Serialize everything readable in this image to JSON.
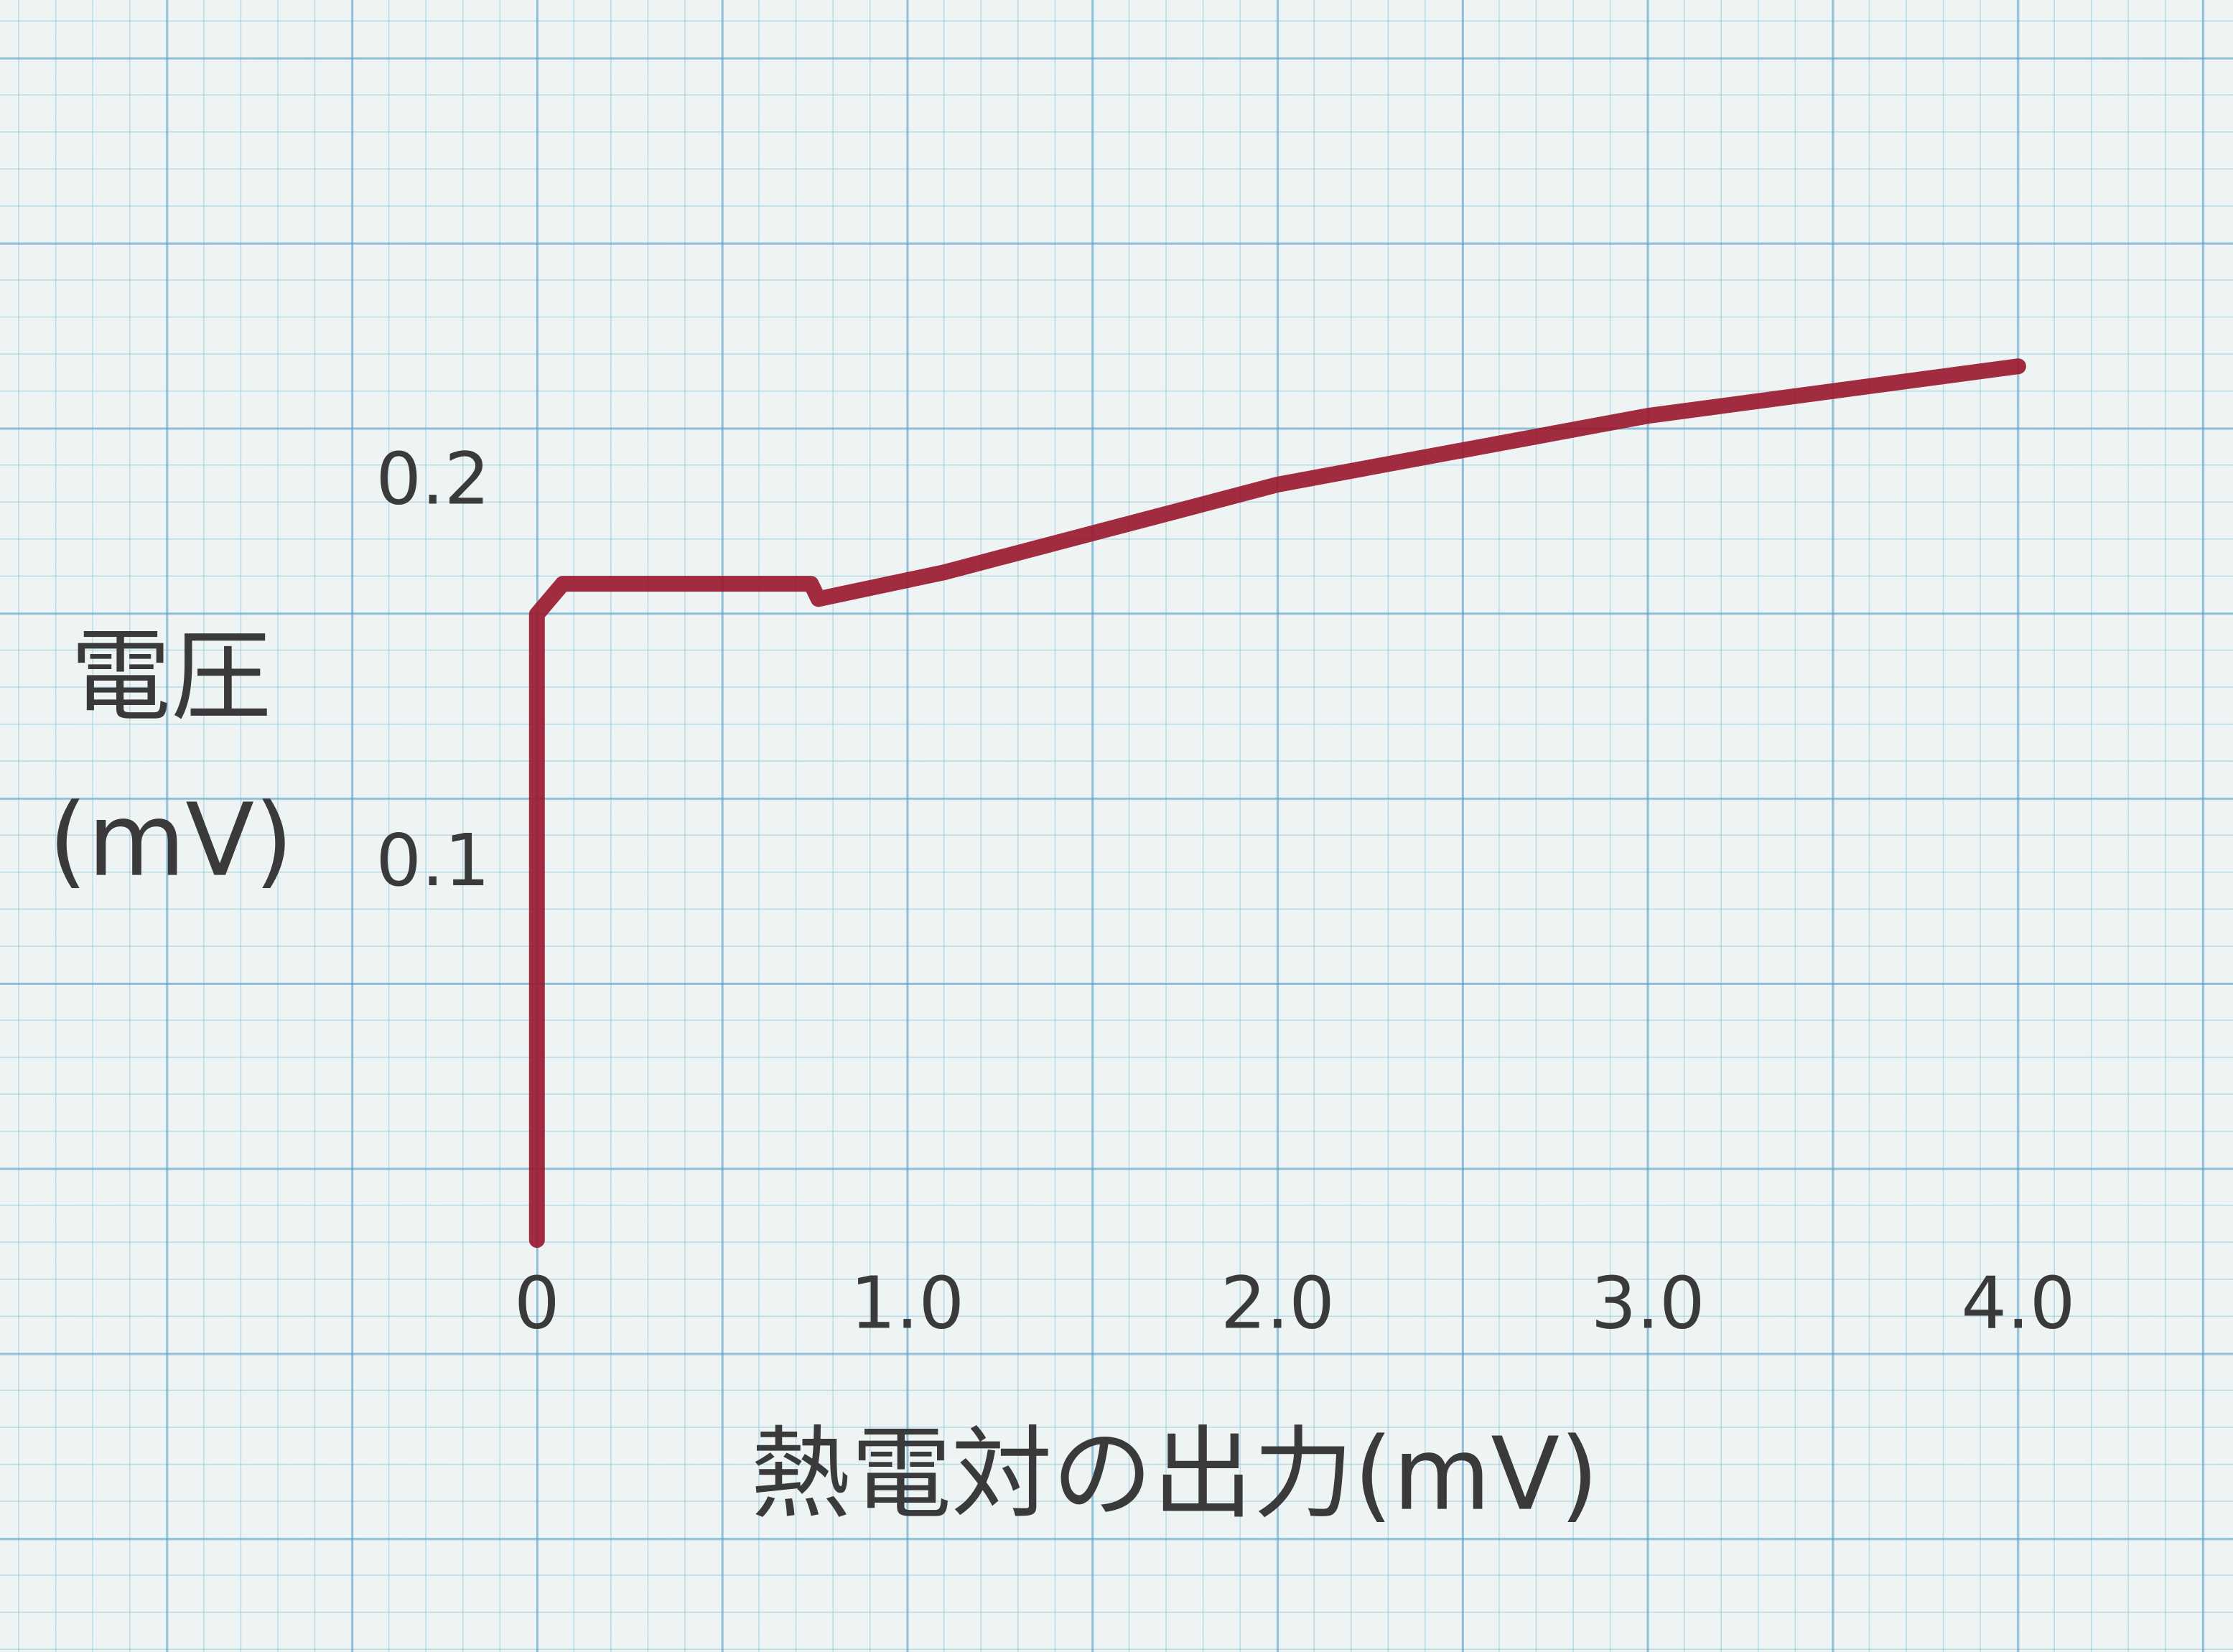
{
  "chart_data": {
    "type": "line",
    "xlabel": "熱電対の出力(mV)",
    "ylabel": [
      "電圧",
      "(mV)"
    ],
    "x": [
      0,
      0,
      0.07,
      0.74,
      0.76,
      1.1,
      2.0,
      3.0,
      4.0
    ],
    "series": [
      {
        "color": "#9b1b30",
        "values": [
          0,
          0.164,
          0.172,
          0.172,
          0.168,
          0.175,
          0.198,
          0.216,
          0.229
        ]
      }
    ],
    "xlim": [
      -1.45,
      4.58
    ],
    "ylim": [
      -0.108,
      0.325
    ],
    "xticks": [
      0,
      {
        "value": 1,
        "label": "1.0"
      },
      {
        "value": 2,
        "label": "2.0"
      },
      {
        "value": 3,
        "label": "3.0"
      },
      {
        "value": 4,
        "label": "4.0"
      }
    ],
    "yticks": [
      0.1,
      0.2
    ],
    "grid": false
  }
}
